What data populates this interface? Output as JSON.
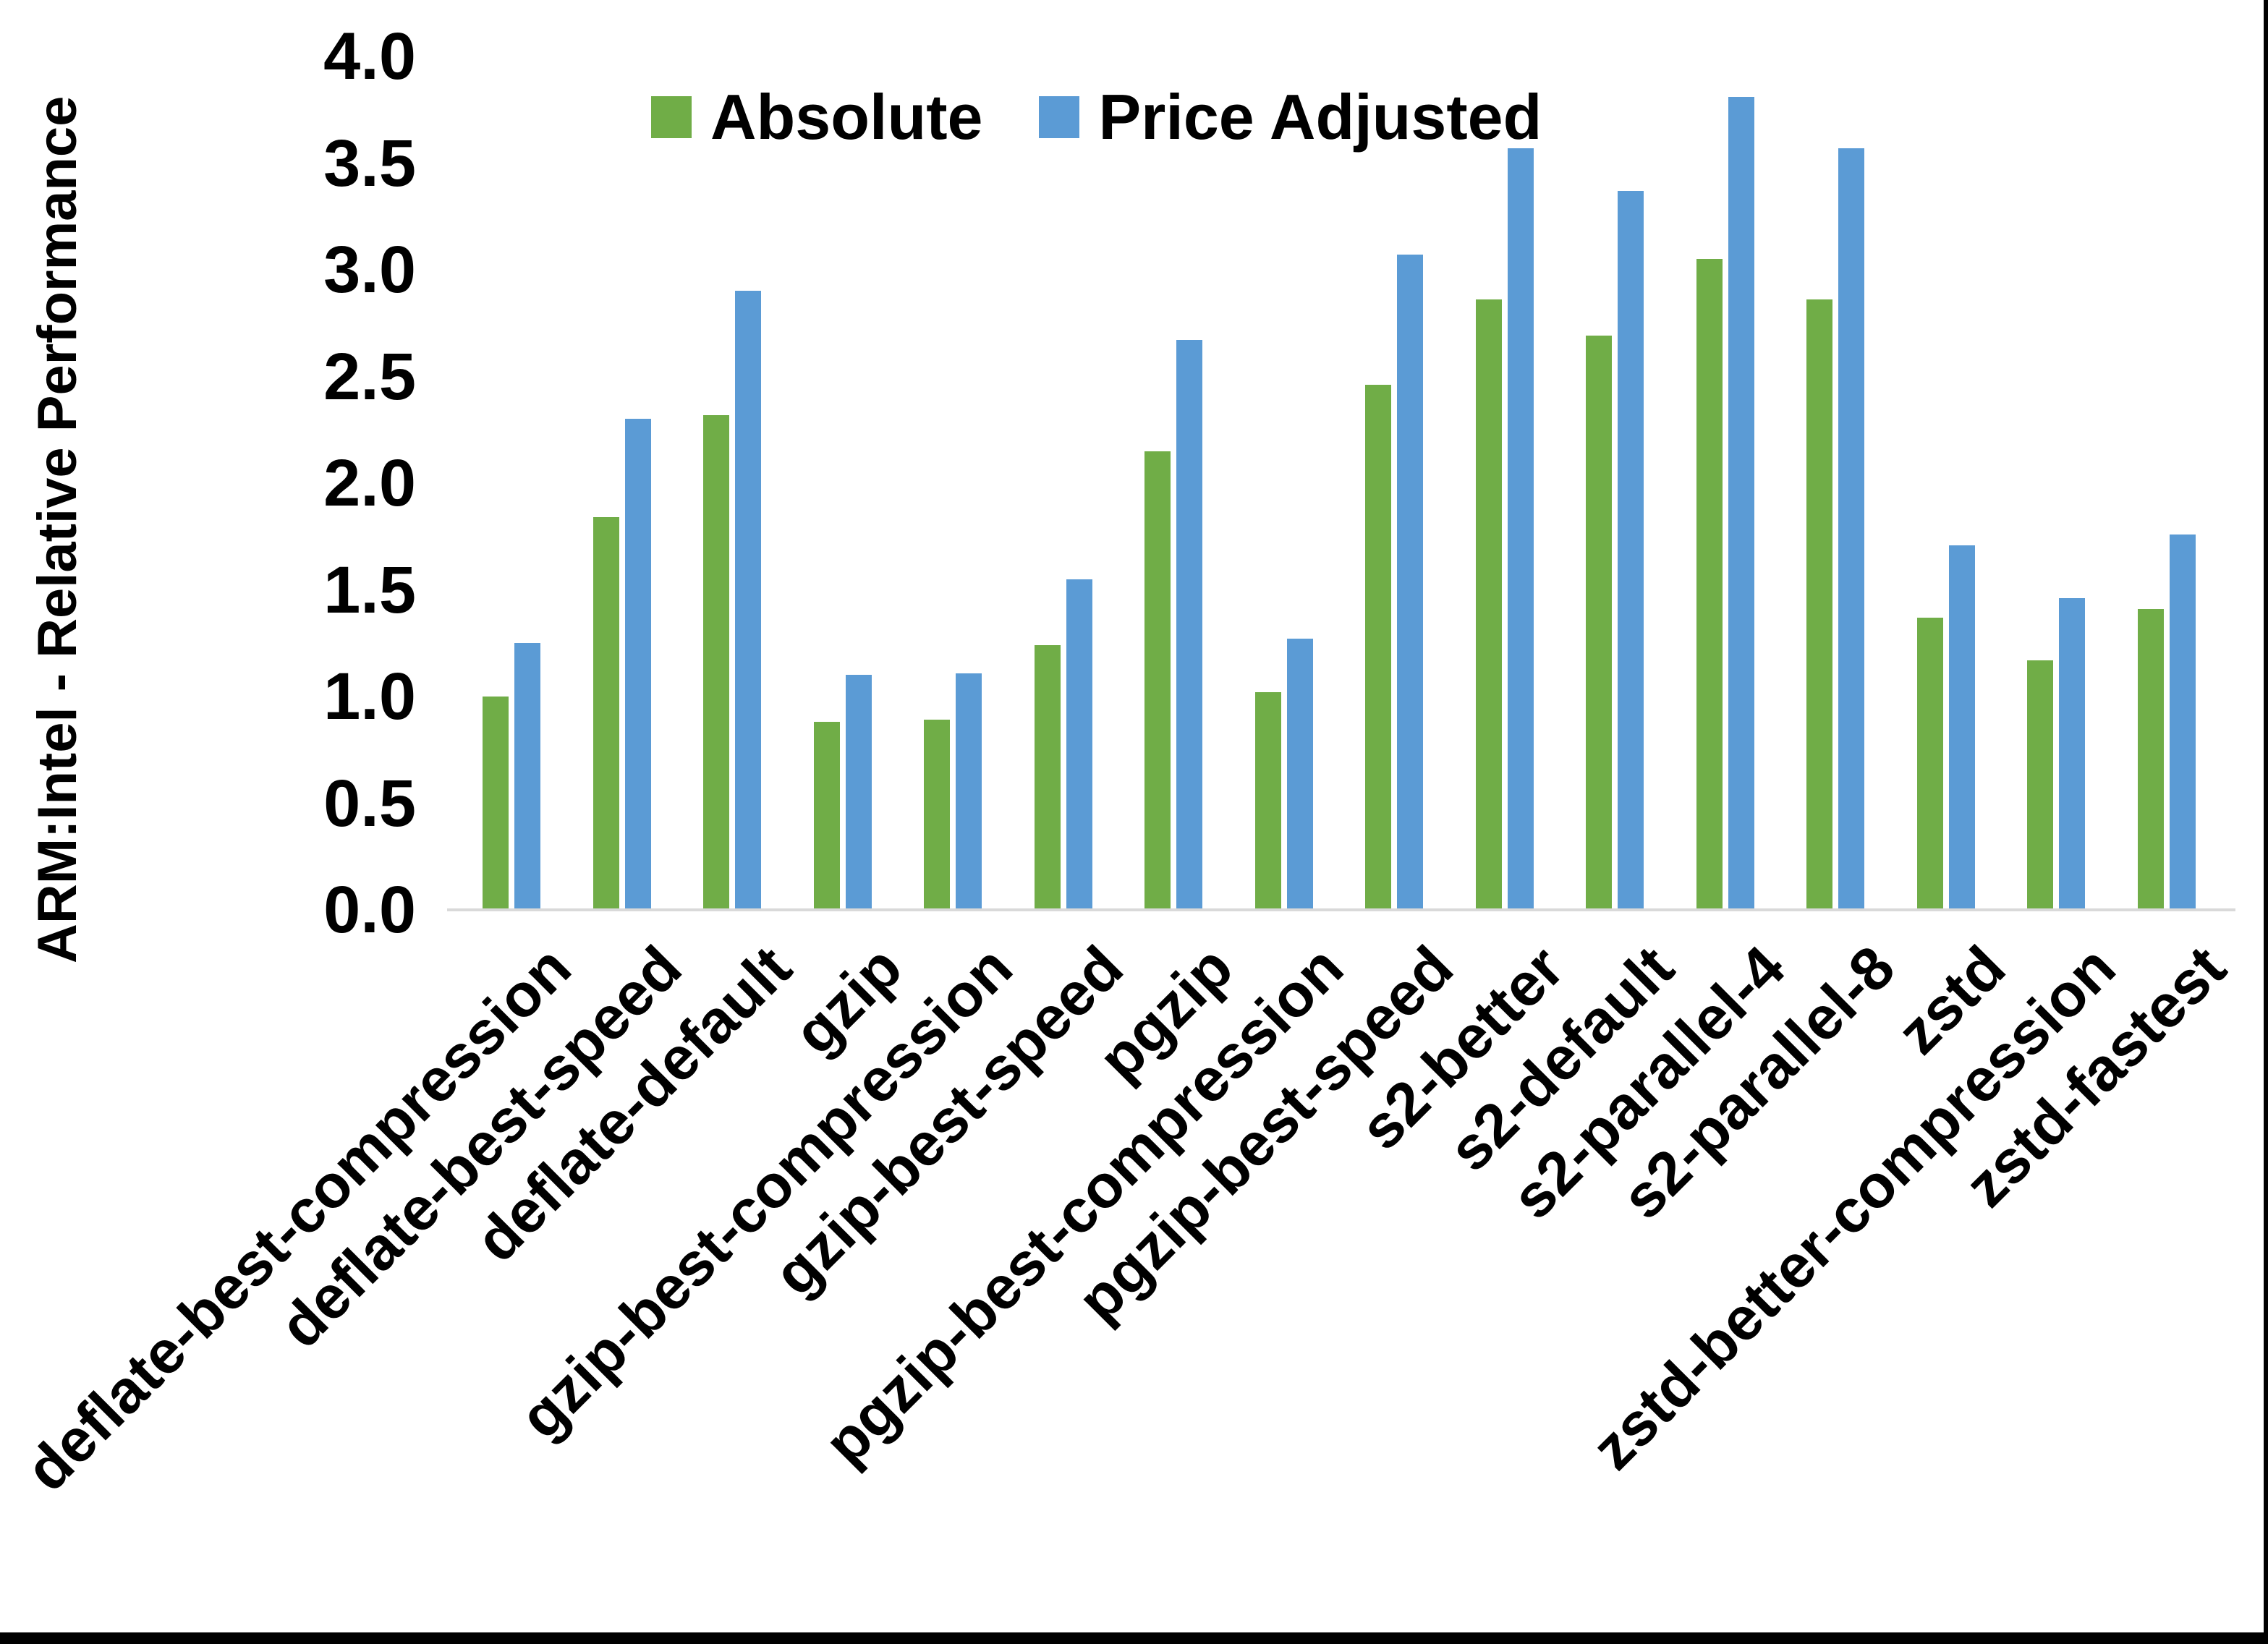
{
  "y_axis": {
    "title": "ARM:Intel - Relative Performance",
    "tick_labels": [
      "0.0",
      "0.5",
      "1.0",
      "1.5",
      "2.0",
      "2.5",
      "3.0",
      "3.5",
      "4.0"
    ]
  },
  "legend": {
    "items": [
      {
        "label": "Absolute",
        "color": "#70AD47"
      },
      {
        "label": "Price Adjusted",
        "color": "#5B9BD5"
      }
    ]
  },
  "chart_data": {
    "type": "bar",
    "title": "",
    "xlabel": "",
    "ylabel": "ARM:Intel - Relative Performance",
    "ylim": [
      0,
      4.0
    ],
    "ytick_step": 0.5,
    "grid": false,
    "legend_position": "top-center",
    "categories": [
      "deflate-best-compression",
      "deflate-best-speed",
      "deflate-default",
      "gzip",
      "gzip-best-compression",
      "gzip-best-speed",
      "pgzip",
      "pgzip-best-compression",
      "pgzip-best-speed",
      "s2-better",
      "s2-default",
      "s2-parallel-4",
      "s2-parallel-8",
      "zstd",
      "zstd-better-compression",
      "zstd-fastest"
    ],
    "series": [
      {
        "name": "Absolute",
        "color": "#70AD47",
        "values": [
          1.0,
          1.84,
          2.32,
          0.88,
          0.89,
          1.24,
          2.15,
          1.02,
          2.46,
          2.86,
          2.69,
          3.05,
          2.86,
          1.37,
          1.17,
          1.41
        ]
      },
      {
        "name": "Price Adjusted",
        "color": "#5B9BD5",
        "values": [
          1.25,
          2.3,
          2.9,
          1.1,
          1.11,
          1.55,
          2.67,
          1.27,
          3.07,
          3.57,
          3.37,
          3.81,
          3.57,
          1.71,
          1.46,
          1.76
        ]
      }
    ]
  }
}
